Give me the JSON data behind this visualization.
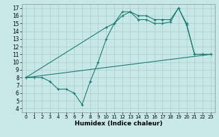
{
  "line1_x": [
    0,
    1,
    2,
    3,
    4,
    5,
    6,
    7,
    8,
    9,
    10,
    11,
    12,
    13,
    14,
    15,
    16,
    17,
    18,
    19,
    20,
    21,
    22,
    23
  ],
  "line1_y": [
    8,
    8,
    8,
    7.5,
    6.5,
    6.5,
    6.0,
    4.5,
    7.5,
    10.0,
    13.0,
    15.0,
    16.5,
    16.5,
    16.0,
    16.0,
    15.5,
    15.5,
    15.5,
    17.0,
    15.0,
    11.0,
    11.0,
    11.0
  ],
  "line2_x": [
    0,
    23
  ],
  "line2_y": [
    8,
    11.0
  ],
  "line3_x": [
    0,
    10,
    11,
    12,
    13,
    14,
    15,
    16,
    17,
    18,
    19,
    20,
    21,
    22,
    23
  ],
  "line3_y": [
    8,
    14.5,
    15.0,
    16.0,
    16.5,
    15.5,
    15.5,
    15.0,
    15.0,
    15.2,
    17.0,
    14.8,
    11.0,
    11.0,
    11.0
  ],
  "line_color": "#1a7a6e",
  "bg_color": "#c8e8e8",
  "grid_color": "#a8cece",
  "xlabel": "Humidex (Indice chaleur)",
  "xlim": [
    -0.5,
    23.5
  ],
  "ylim": [
    3.5,
    17.5
  ],
  "xticks": [
    0,
    1,
    2,
    3,
    4,
    5,
    6,
    7,
    8,
    9,
    10,
    11,
    12,
    13,
    14,
    15,
    16,
    17,
    18,
    19,
    20,
    21,
    22,
    23
  ],
  "yticks": [
    4,
    5,
    6,
    7,
    8,
    9,
    10,
    11,
    12,
    13,
    14,
    15,
    16,
    17
  ]
}
